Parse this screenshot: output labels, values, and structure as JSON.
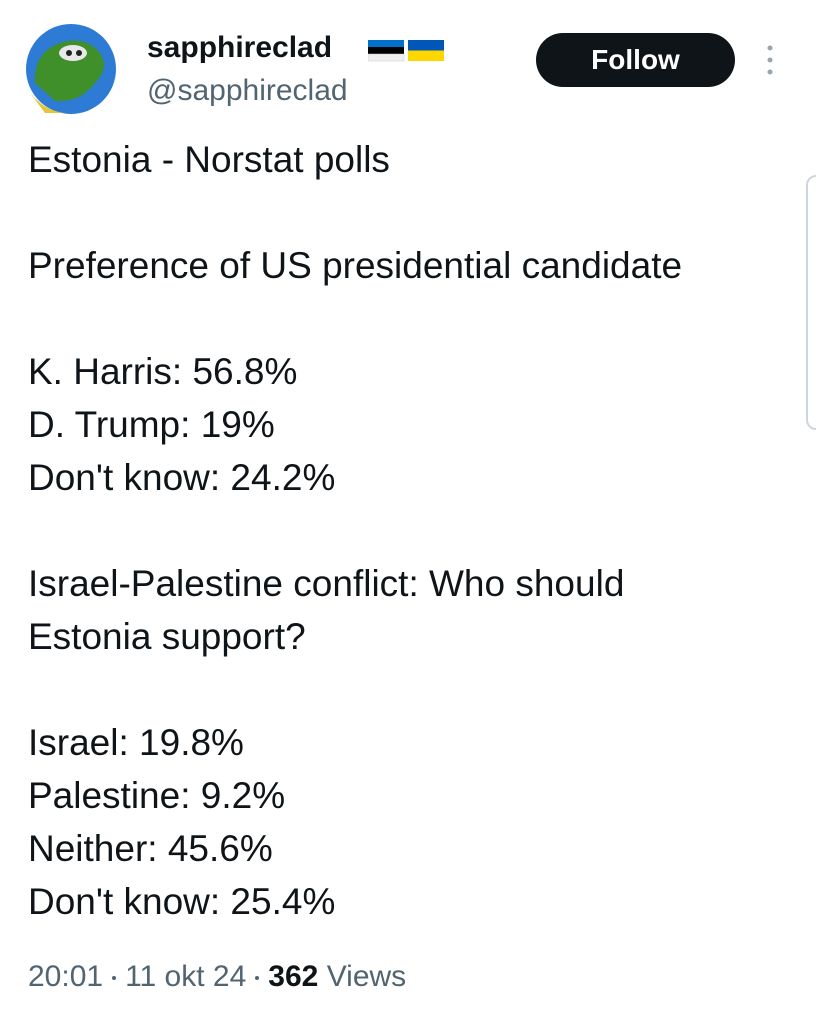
{
  "author": {
    "name": "sapphireclad",
    "handle": "@sapphireclad"
  },
  "follow_button": "Follow",
  "post": {
    "paragraphs": [
      [
        "Estonia - Norstat polls"
      ],
      [
        "Preference of US presidential candidate"
      ],
      [
        "K. Harris: 56.8%",
        "D. Trump: 19%",
        "Don't know: 24.2%"
      ],
      [
        "Israel-Palestine conflict: Who should",
        "Estonia support?"
      ],
      [
        "Israel: 19.8%",
        "Palestine: 9.2%",
        "Neither: 45.6%",
        "Don't know: 25.4%"
      ]
    ]
  },
  "meta": {
    "time": "20:01",
    "date": "11 okt 24",
    "views_count": "362",
    "views_label": "Views"
  }
}
